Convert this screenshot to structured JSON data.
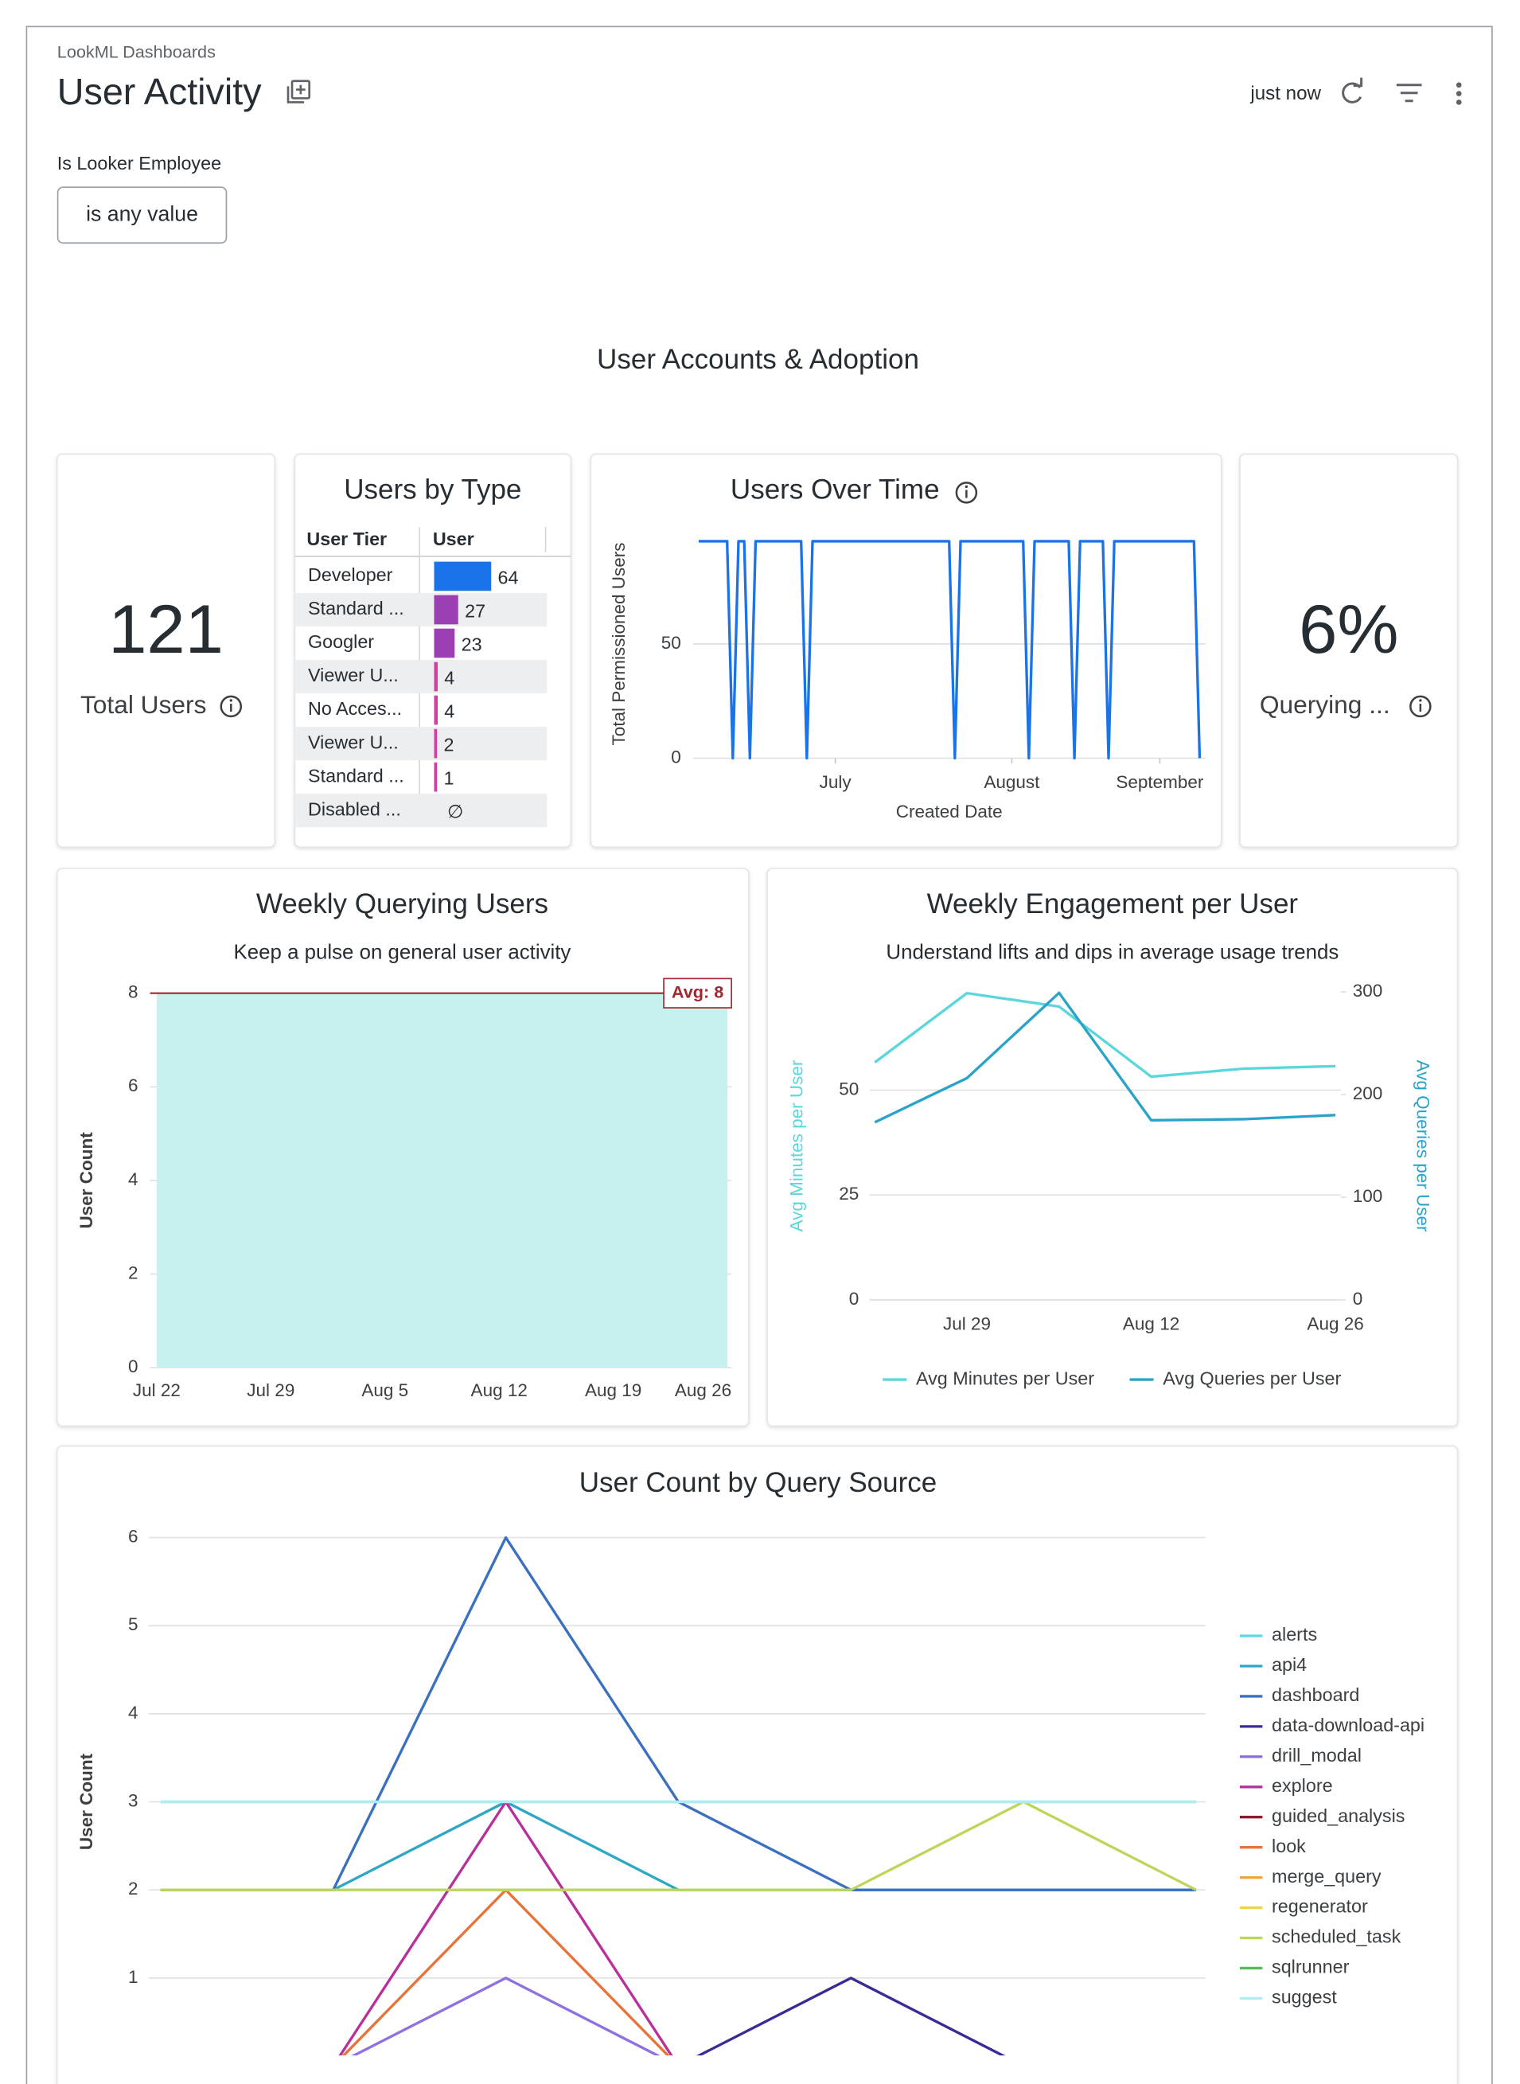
{
  "header": {
    "breadcrumb": "LookML Dashboards",
    "title": "User Activity",
    "refreshed": "just now"
  },
  "filter": {
    "label": "Is Looker Employee",
    "value": "is any value"
  },
  "section_title": "User Accounts & Adoption",
  "kpis": [
    {
      "value": "121",
      "label": "Total Users"
    },
    {
      "value": "6%",
      "label": "Querying ..."
    }
  ],
  "chart_data": [
    {
      "type": "table_bar",
      "title": "Users by Type",
      "columns": [
        "User Tier",
        "User"
      ],
      "categories": [
        "Developer",
        "Standard ...",
        "Googler",
        "Viewer U...",
        "No Acces...",
        "Viewer U...",
        "Standard ...",
        "Disabled ..."
      ],
      "values": [
        64,
        27,
        23,
        4,
        4,
        2,
        1,
        null
      ],
      "value_labels": [
        "64",
        "27",
        "23",
        "4",
        "4",
        "2",
        "1",
        "∅"
      ],
      "colors": [
        "#1a73e8",
        "#9c3fb5",
        "#9c3fb5",
        "#d63ca5",
        "#d63ca5",
        "#d63ca5",
        "#d63ca5",
        "#d63ca5"
      ]
    },
    {
      "type": "line",
      "title": "Users Over Time",
      "x_label": "Created Date",
      "y_label": "Total Permissioned Users",
      "x": [
        1,
        6,
        7,
        8,
        9,
        10,
        11,
        19,
        20,
        21,
        45,
        46,
        47,
        58,
        59,
        60,
        66,
        67,
        68,
        72,
        73,
        74,
        88,
        89
      ],
      "values": [
        95,
        95,
        0,
        95,
        95,
        0,
        95,
        95,
        0,
        95,
        95,
        0,
        95,
        95,
        0,
        95,
        95,
        0,
        95,
        95,
        0,
        95,
        95,
        0
      ],
      "xlim": [
        0,
        90
      ],
      "xticks": [
        {
          "value": 25,
          "label": "July"
        },
        {
          "value": 56,
          "label": "August"
        },
        {
          "value": 82,
          "label": "September"
        }
      ],
      "ylim": [
        0,
        100
      ],
      "yticks": [
        0,
        50
      ],
      "color": "#1a73e8",
      "grid": true
    },
    {
      "type": "area",
      "title": "Weekly Querying Users",
      "subtitle": "Keep a pulse on general user activity",
      "y_label": "User Count",
      "categories": [
        "Jul 22",
        "Jul 29",
        "Aug 5",
        "Aug 12",
        "Aug 19",
        "Aug 26"
      ],
      "values": [
        8,
        8,
        8,
        8,
        8,
        8
      ],
      "ylim": [
        0,
        8
      ],
      "yticks": [
        0,
        2,
        4,
        6,
        8
      ],
      "color": "#c6f1ef",
      "grid": true,
      "reference_line": {
        "value": 8,
        "label": "Avg: 8",
        "color": "#a3262f"
      }
    },
    {
      "type": "line",
      "title": "Weekly Engagement per User",
      "subtitle": "Understand lifts and dips in average usage trends",
      "y_label": "Avg Minutes per User",
      "y2_label": "Avg Queries per User",
      "categories": [
        null,
        "Jul 29",
        null,
        "Aug 12",
        null,
        "Aug 26"
      ],
      "series": [
        {
          "name": "Avg Minutes per User",
          "color": "#5ad7dc",
          "values": [
            56.6,
            73.1,
            69.9,
            53.2,
            55.1,
            55.7
          ]
        },
        {
          "name": "Avg Queries per User",
          "color": "#2aa3c9",
          "axis": "y2",
          "values": [
            173,
            216,
            299,
            175,
            176,
            180
          ]
        }
      ],
      "ylim": [
        0,
        73.4
      ],
      "yticks": [
        0,
        25,
        50
      ],
      "y2lim": [
        0,
        300
      ],
      "y2ticks": [
        0,
        100,
        200,
        300
      ],
      "grid": true,
      "legend": "bottom"
    },
    {
      "type": "line",
      "title": "User Count by Query Source",
      "y_label": "User Count",
      "categories": [
        null,
        null,
        null,
        null,
        null,
        null,
        null
      ],
      "series": [
        {
          "name": "alerts",
          "color": "#62d9e0",
          "values": [
            3,
            3,
            3,
            3,
            3,
            3,
            3
          ]
        },
        {
          "name": "api4",
          "color": "#2ea7c7",
          "values": [
            2,
            2,
            3,
            2,
            2,
            2,
            2
          ]
        },
        {
          "name": "dashboard",
          "color": "#3b6fbf",
          "values": [
            2,
            2,
            6,
            3,
            2,
            2,
            2
          ]
        },
        {
          "name": "data-download-api",
          "color": "#3a2a96",
          "values": [
            0,
            0,
            0,
            0,
            1,
            0,
            0
          ]
        },
        {
          "name": "drill_modal",
          "color": "#9070e0",
          "values": [
            0,
            0,
            1,
            0,
            0,
            0,
            0
          ]
        },
        {
          "name": "explore",
          "color": "#b8309c",
          "values": [
            0,
            0,
            3,
            0,
            0,
            0,
            0
          ]
        },
        {
          "name": "guided_analysis",
          "color": "#8c1a2c",
          "values": [
            0,
            0,
            0,
            0,
            0,
            0,
            0
          ]
        },
        {
          "name": "look",
          "color": "#e8733a",
          "values": [
            0,
            0,
            2,
            0,
            0,
            0,
            0
          ]
        },
        {
          "name": "merge_query",
          "color": "#f3a33c",
          "values": [
            0,
            0,
            0,
            0,
            0,
            0,
            0
          ]
        },
        {
          "name": "regenerator",
          "color": "#f1d24a",
          "values": [
            0,
            0,
            0,
            0,
            0,
            0,
            0
          ]
        },
        {
          "name": "scheduled_task",
          "color": "#bcd65c",
          "values": [
            2,
            2,
            2,
            2,
            2,
            3,
            2
          ]
        },
        {
          "name": "sqlrunner",
          "color": "#5cb85c",
          "values": [
            0,
            0,
            0,
            0,
            0,
            0,
            0
          ]
        },
        {
          "name": "suggest",
          "color": "#aeeef2",
          "values": [
            3,
            3,
            3,
            3,
            3,
            3,
            3
          ]
        }
      ],
      "ylim": [
        0,
        6
      ],
      "yticks": [
        1,
        2,
        3,
        4,
        5,
        6
      ],
      "grid": true,
      "legend": "right"
    }
  ]
}
